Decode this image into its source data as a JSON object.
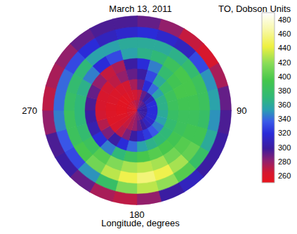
{
  "chart_data": {
    "type": "polar_heatmap",
    "title": "March 13, 2011",
    "xlabel": "Longitude, degrees",
    "xlim": [
      0,
      360
    ],
    "xticks": [
      90,
      180,
      270
    ],
    "ylim": [
      45,
      90
    ],
    "lat": [
      87.5,
      82.5,
      77.5,
      72.5,
      67.5,
      62.5,
      57.5,
      52.5,
      47.5
    ],
    "lon": [
      7.5,
      22.5,
      37.5,
      52.5,
      67.5,
      82.5,
      97.5,
      112.5,
      127.5,
      142.5,
      157.5,
      172.5,
      187.5,
      202.5,
      217.5,
      232.5,
      247.5,
      262.5,
      277.5,
      292.5,
      307.5,
      322.5,
      337.5,
      352.5
    ],
    "cells": [
      [
        275,
        285,
        290,
        295,
        300,
        300,
        300,
        300,
        300,
        295,
        290,
        285,
        280,
        275,
        270,
        265,
        265,
        262,
        260,
        260,
        262,
        265,
        268,
        272
      ],
      [
        270,
        290,
        300,
        310,
        320,
        320,
        320,
        320,
        315,
        310,
        300,
        290,
        280,
        275,
        268,
        262,
        258,
        255,
        255,
        255,
        255,
        258,
        262,
        265
      ],
      [
        290,
        320,
        340,
        355,
        365,
        365,
        360,
        355,
        345,
        335,
        325,
        315,
        300,
        285,
        272,
        262,
        258,
        258,
        258,
        260,
        260,
        262,
        265,
        275
      ],
      [
        300,
        330,
        360,
        380,
        385,
        385,
        380,
        375,
        370,
        370,
        365,
        355,
        340,
        320,
        300,
        285,
        272,
        265,
        262,
        262,
        265,
        270,
        280,
        290
      ],
      [
        320,
        345,
        375,
        390,
        395,
        390,
        385,
        385,
        390,
        395,
        400,
        395,
        385,
        370,
        345,
        320,
        305,
        300,
        295,
        290,
        280,
        268,
        275,
        300
      ],
      [
        365,
        370,
        385,
        395,
        395,
        390,
        385,
        390,
        400,
        410,
        425,
        430,
        425,
        415,
        400,
        385,
        375,
        370,
        370,
        365,
        345,
        320,
        330,
        355
      ],
      [
        360,
        360,
        365,
        375,
        385,
        385,
        380,
        390,
        405,
        425,
        445,
        455,
        445,
        430,
        410,
        395,
        385,
        385,
        380,
        375,
        370,
        355,
        355,
        360
      ],
      [
        320,
        315,
        310,
        330,
        350,
        355,
        350,
        360,
        380,
        400,
        420,
        430,
        415,
        380,
        350,
        330,
        335,
        345,
        340,
        340,
        330,
        320,
        310,
        315
      ],
      [
        290,
        280,
        268,
        262,
        275,
        290,
        295,
        300,
        300,
        310,
        300,
        280,
        270,
        275,
        290,
        300,
        295,
        280,
        270,
        275,
        280,
        290,
        295,
        295
      ]
    ],
    "colorbar_label": "TO, Dobson Units",
    "colorbar_range": [
      250,
      490
    ],
    "colorbar_ticks": [
      260,
      280,
      300,
      320,
      340,
      360,
      380,
      400,
      420,
      440,
      460,
      480
    ]
  }
}
